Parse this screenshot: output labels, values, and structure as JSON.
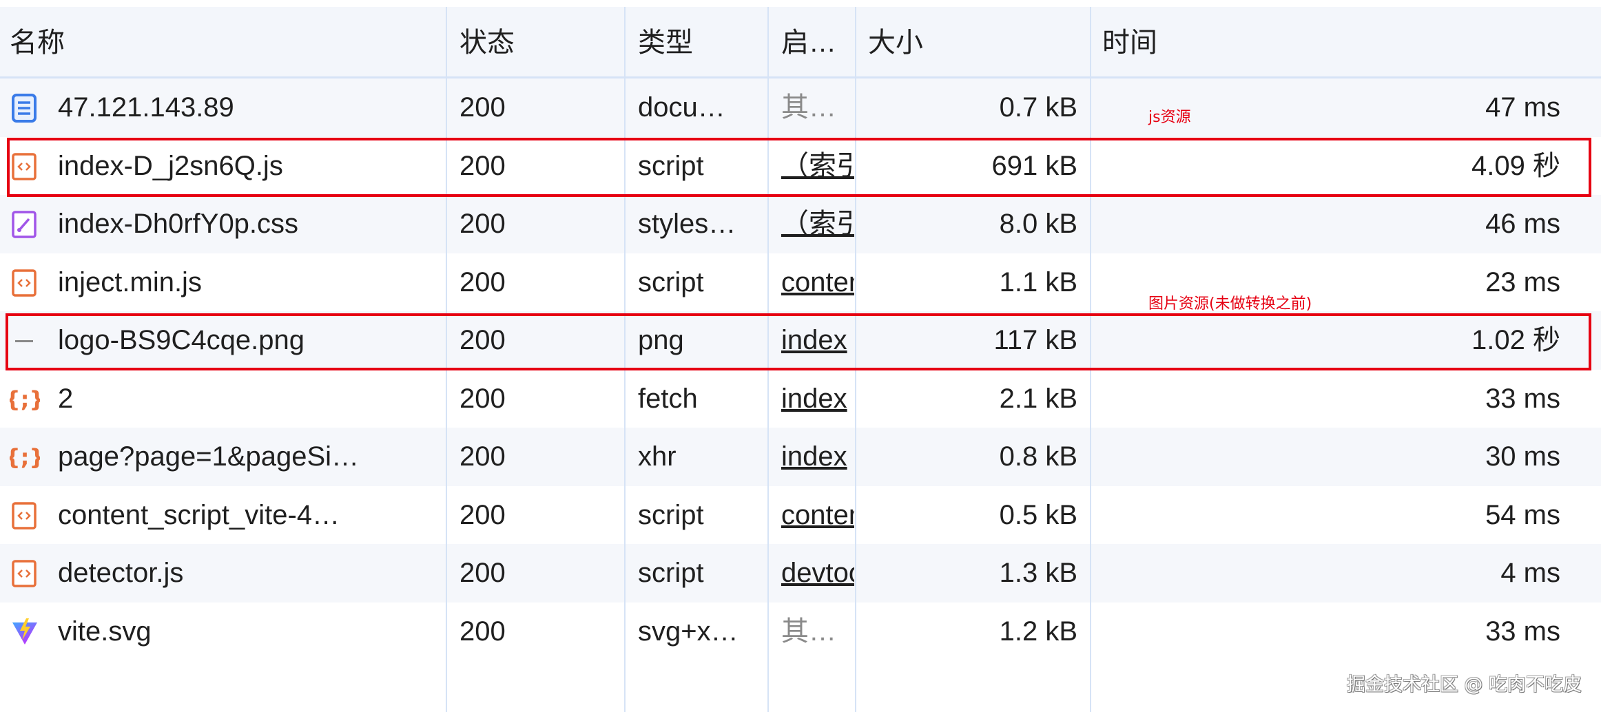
{
  "columns": [
    "名称",
    "状态",
    "类型",
    "启…",
    "大小",
    "时间"
  ],
  "rows": [
    {
      "icon": "document-icon",
      "name": "47.121.143.89",
      "status": "200",
      "type": "docu…",
      "initiator": "其…",
      "initiator_style": "other",
      "size": "0.7 kB",
      "time": "47 ms"
    },
    {
      "icon": "script-icon",
      "name": "index-D_j2sn6Q.js",
      "status": "200",
      "type": "script",
      "initiator": "（索引",
      "initiator_style": "link",
      "size": "691 kB",
      "time": "4.09 秒"
    },
    {
      "icon": "stylesheet-icon",
      "name": "index-Dh0rfY0p.css",
      "status": "200",
      "type": "styles…",
      "initiator": "（索引",
      "initiator_style": "link",
      "size": "8.0 kB",
      "time": "46 ms"
    },
    {
      "icon": "script-icon",
      "name": "inject.min.js",
      "status": "200",
      "type": "script",
      "initiator": "content",
      "initiator_style": "link",
      "size": "1.1 kB",
      "time": "23 ms"
    },
    {
      "icon": "image-icon",
      "name": "logo-BS9C4cqe.png",
      "status": "200",
      "type": "png",
      "initiator": "index",
      "initiator_style": "link",
      "size": "117 kB",
      "time": "1.02 秒"
    },
    {
      "icon": "fetch-icon",
      "name": "2",
      "status": "200",
      "type": "fetch",
      "initiator": "index",
      "initiator_style": "link",
      "size": "2.1 kB",
      "time": "33 ms"
    },
    {
      "icon": "fetch-icon",
      "name": "page?page=1&pageSi…",
      "status": "200",
      "type": "xhr",
      "initiator": "index",
      "initiator_style": "link",
      "size": "0.8 kB",
      "time": "30 ms"
    },
    {
      "icon": "script-icon",
      "name": "content_script_vite-4…",
      "status": "200",
      "type": "script",
      "initiator": "content",
      "initiator_style": "link",
      "size": "0.5 kB",
      "time": "54 ms"
    },
    {
      "icon": "script-icon",
      "name": "detector.js",
      "status": "200",
      "type": "script",
      "initiator": "devtools",
      "initiator_style": "link",
      "size": "1.3 kB",
      "time": "4 ms"
    },
    {
      "icon": "vite-icon",
      "name": "vite.svg",
      "status": "200",
      "type": "svg+x…",
      "initiator": "其…",
      "initiator_style": "other",
      "size": "1.2 kB",
      "time": "33 ms"
    }
  ],
  "annotations": {
    "js_note": "js资源",
    "image_note": "图片资源(未做转换之前)",
    "highlight_color": "#e60012"
  },
  "watermark": "掘金技术社区 @ 吃肉不吃皮",
  "colors": {
    "script": "#e8703a",
    "document": "#3a7be8",
    "stylesheet": "#a155e8",
    "header_bg": "#f3f6fb",
    "grid": "#d6e3f6"
  }
}
